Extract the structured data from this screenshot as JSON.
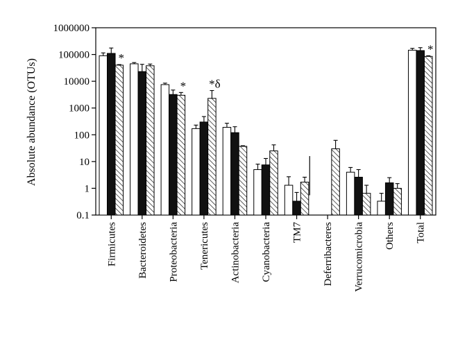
{
  "chart_data": {
    "type": "bar",
    "title": "",
    "xlabel": "",
    "ylabel": "Absolute abundance (OTUs)",
    "yscale": "log",
    "ylim": [
      0.1,
      1000000
    ],
    "yticks": [
      "0.1",
      "1",
      "10",
      "100",
      "1000",
      "10000",
      "100000",
      "1000000"
    ],
    "grid": false,
    "legend": "none",
    "categories": [
      "Firmicutes",
      "Bacteroidetes",
      "Proteobacteria",
      "Tenericutes",
      "Actinobacteria",
      "Cyanobacteria",
      "TM7",
      "Deferribacteres",
      "Verrucomicrobia",
      "Others",
      "Total"
    ],
    "series": [
      {
        "style": "open",
        "values": [
          90000,
          45000,
          7500,
          170,
          190,
          5,
          1.3,
          null,
          4,
          0.33,
          145000
        ],
        "errors": [
          115000,
          50000,
          8500,
          230,
          270,
          8,
          2.7,
          null,
          6,
          0.65,
          170000
        ]
      },
      {
        "style": "solid",
        "values": [
          110000,
          23000,
          3200,
          300,
          120,
          7.5,
          0.33,
          null,
          2.6,
          1.6,
          140000
        ],
        "errors": [
          175000,
          43000,
          4700,
          480,
          200,
          13,
          0.7,
          null,
          5,
          2.5,
          180000
        ]
      },
      {
        "style": "hatched",
        "values": [
          40000,
          38000,
          3000,
          2300,
          37,
          25,
          1.7,
          30,
          0.65,
          1,
          85000
        ],
        "errors": [
          42000,
          44000,
          3800,
          4500,
          39,
          42,
          2.6,
          62,
          1.3,
          1.5,
          90000
        ]
      }
    ],
    "annotations": [
      {
        "category": "Firmicutes",
        "series": 2,
        "text": "*"
      },
      {
        "category": "Proteobacteria",
        "series": 2,
        "text": "*"
      },
      {
        "category": "Tenericutes",
        "series": 2,
        "text": "*δ"
      },
      {
        "category": "Total",
        "series": 2,
        "text": "*"
      }
    ],
    "colors": {
      "bar_open": "#ffffff",
      "bar_solid": "#111111",
      "hatch": "#333333",
      "axis": "#000000"
    }
  }
}
